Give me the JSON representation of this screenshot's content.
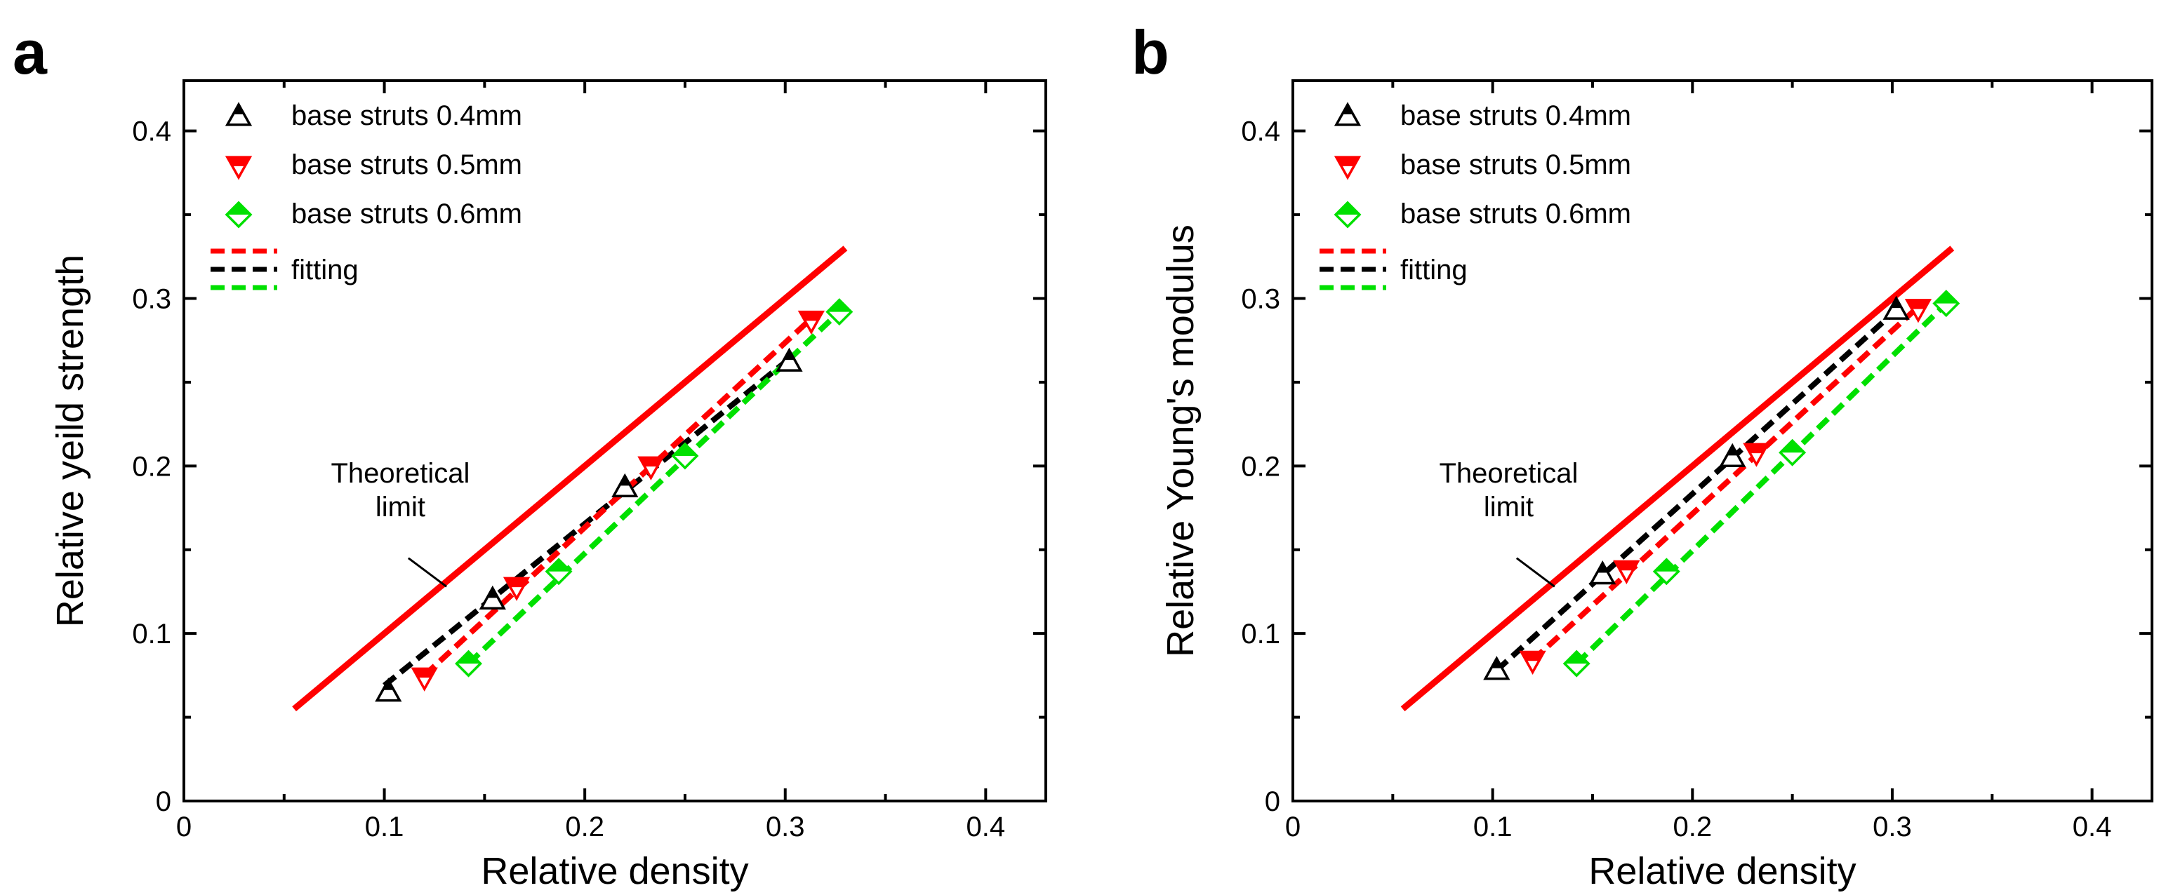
{
  "chart_data": [
    {
      "panel_label": "a",
      "type": "scatter",
      "xlabel": "Relative density",
      "ylabel": "Relative yeild strength",
      "xlim": [
        0,
        0.43
      ],
      "ylim": [
        0,
        0.43
      ],
      "x_ticks": [
        "0",
        "0.1",
        "0.2",
        "0.3",
        "0.4"
      ],
      "y_ticks": [
        "0",
        "0.1",
        "0.2",
        "0.3",
        "0.4"
      ],
      "legend_position": "top-left",
      "annotation": [
        "Theoretical",
        "limit"
      ],
      "theoretical_limit": {
        "x": [
          0.055,
          0.33
        ],
        "y": [
          0.055,
          0.33
        ],
        "color": "#ff0000"
      },
      "series": [
        {
          "name": "base struts 0.4mm",
          "marker": "triangle-up",
          "color": "#000000",
          "x": [
            0.102,
            0.154,
            0.22,
            0.302
          ],
          "y": [
            0.065,
            0.12,
            0.187,
            0.262
          ],
          "fit": {
            "x": [
              0.1,
              0.3
            ],
            "y": [
              0.069,
              0.262
            ]
          }
        },
        {
          "name": "base struts 0.5mm",
          "marker": "triangle-down",
          "color": "#ff0000",
          "x": [
            0.12,
            0.166,
            0.233,
            0.313
          ],
          "y": [
            0.074,
            0.128,
            0.2,
            0.287
          ],
          "fit": {
            "x": [
              0.12,
              0.313
            ],
            "y": [
              0.075,
              0.288
            ]
          }
        },
        {
          "name": "base struts 0.6mm",
          "marker": "diamond",
          "color": "#00e000",
          "x": [
            0.142,
            0.187,
            0.25,
            0.327
          ],
          "y": [
            0.082,
            0.137,
            0.206,
            0.292
          ],
          "fit": {
            "x": [
              0.142,
              0.327
            ],
            "y": [
              0.082,
              0.292
            ]
          }
        }
      ],
      "fitting_label": "fitting"
    },
    {
      "panel_label": "b",
      "type": "scatter",
      "xlabel": "Relative density",
      "ylabel": "Relative Young's modulus",
      "xlim": [
        0,
        0.43
      ],
      "ylim": [
        0,
        0.43
      ],
      "x_ticks": [
        "0",
        "0.1",
        "0.2",
        "0.3",
        "0.4"
      ],
      "y_ticks": [
        "0",
        "0.1",
        "0.2",
        "0.3",
        "0.4"
      ],
      "legend_position": "top-left",
      "annotation": [
        "Theoretical",
        "limit"
      ],
      "theoretical_limit": {
        "x": [
          0.055,
          0.33
        ],
        "y": [
          0.055,
          0.33
        ],
        "color": "#ff0000"
      },
      "series": [
        {
          "name": "base struts 0.4mm",
          "marker": "triangle-up",
          "color": "#000000",
          "x": [
            0.102,
            0.155,
            0.22,
            0.302
          ],
          "y": [
            0.078,
            0.135,
            0.205,
            0.293
          ],
          "fit": {
            "x": [
              0.102,
              0.302
            ],
            "y": [
              0.078,
              0.293
            ]
          }
        },
        {
          "name": "base struts 0.5mm",
          "marker": "triangle-down",
          "color": "#ff0000",
          "x": [
            0.12,
            0.167,
            0.232,
            0.313
          ],
          "y": [
            0.084,
            0.138,
            0.208,
            0.294
          ],
          "fit": {
            "x": [
              0.12,
              0.313
            ],
            "y": [
              0.084,
              0.295
            ]
          }
        },
        {
          "name": "base struts 0.6mm",
          "marker": "diamond",
          "color": "#00e000",
          "x": [
            0.142,
            0.187,
            0.25,
            0.327
          ],
          "y": [
            0.082,
            0.137,
            0.208,
            0.297
          ],
          "fit": {
            "x": [
              0.142,
              0.327
            ],
            "y": [
              0.082,
              0.297
            ]
          }
        }
      ],
      "fitting_label": "fitting"
    }
  ]
}
